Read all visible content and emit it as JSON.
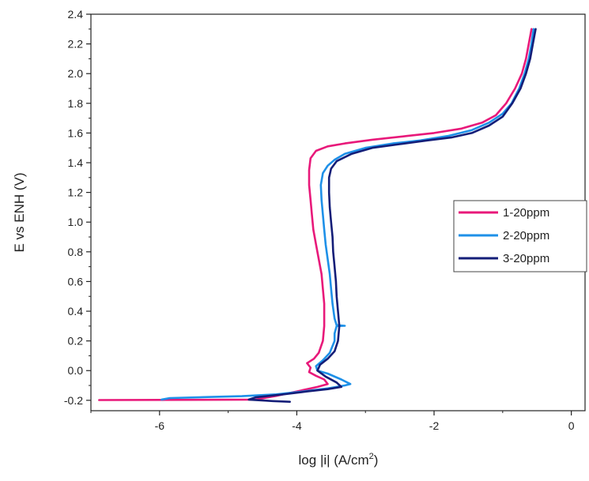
{
  "chart_data": {
    "type": "line",
    "title": "",
    "xlabel_main": "log |i| (A/cm",
    "xlabel_sup": "2",
    "xlabel_end": ")",
    "ylabel": "E vs ENH (V)",
    "xlim": [
      -7,
      0.2
    ],
    "ylim": [
      -0.27,
      2.4
    ],
    "x_ticks": [
      -6,
      -4,
      -2,
      0
    ],
    "x_tick_labels": [
      "-6",
      "-4",
      "-2",
      "0"
    ],
    "y_ticks": [
      -0.2,
      0.0,
      0.2,
      0.4,
      0.6,
      0.8,
      1.0,
      1.2,
      1.4,
      1.6,
      1.8,
      2.0,
      2.2,
      2.4
    ],
    "y_tick_labels": [
      "-0.2",
      "0.0",
      "0.2",
      "0.4",
      "0.6",
      "0.8",
      "1.0",
      "1.2",
      "1.4",
      "1.6",
      "1.8",
      "2.0",
      "2.2",
      "2.4"
    ],
    "legend_position": "right",
    "grid": false,
    "series": [
      {
        "name": "1-20ppm",
        "color": "#e8197a",
        "points": [
          [
            -6.88,
            -0.198
          ],
          [
            -6.0,
            -0.197
          ],
          [
            -5.0,
            -0.196
          ],
          [
            -4.6,
            -0.195
          ],
          [
            -4.3,
            -0.17
          ],
          [
            -4.0,
            -0.14
          ],
          [
            -3.7,
            -0.11
          ],
          [
            -3.55,
            -0.09
          ],
          [
            -3.6,
            -0.06
          ],
          [
            -3.72,
            -0.035
          ],
          [
            -3.82,
            -0.01
          ],
          [
            -3.8,
            0.02
          ],
          [
            -3.85,
            0.05
          ],
          [
            -3.75,
            0.08
          ],
          [
            -3.68,
            0.12
          ],
          [
            -3.62,
            0.2
          ],
          [
            -3.6,
            0.3
          ],
          [
            -3.6,
            0.45
          ],
          [
            -3.62,
            0.55
          ],
          [
            -3.64,
            0.65
          ],
          [
            -3.68,
            0.75
          ],
          [
            -3.72,
            0.85
          ],
          [
            -3.76,
            0.95
          ],
          [
            -3.78,
            1.05
          ],
          [
            -3.8,
            1.15
          ],
          [
            -3.82,
            1.25
          ],
          [
            -3.82,
            1.35
          ],
          [
            -3.8,
            1.43
          ],
          [
            -3.72,
            1.48
          ],
          [
            -3.55,
            1.51
          ],
          [
            -3.3,
            1.53
          ],
          [
            -2.9,
            1.555
          ],
          [
            -2.4,
            1.58
          ],
          [
            -2.0,
            1.6
          ],
          [
            -1.6,
            1.63
          ],
          [
            -1.3,
            1.67
          ],
          [
            -1.1,
            1.72
          ],
          [
            -0.95,
            1.8
          ],
          [
            -0.82,
            1.9
          ],
          [
            -0.72,
            2.0
          ],
          [
            -0.66,
            2.1
          ],
          [
            -0.62,
            2.2
          ],
          [
            -0.58,
            2.3
          ]
        ]
      },
      {
        "name": "2-20ppm",
        "color": "#1e90e8",
        "points": [
          [
            -5.97,
            -0.195
          ],
          [
            -5.85,
            -0.185
          ],
          [
            -5.3,
            -0.178
          ],
          [
            -4.8,
            -0.172
          ],
          [
            -4.3,
            -0.16
          ],
          [
            -3.9,
            -0.14
          ],
          [
            -3.55,
            -0.12
          ],
          [
            -3.3,
            -0.1
          ],
          [
            -3.22,
            -0.09
          ],
          [
            -3.35,
            -0.06
          ],
          [
            -3.55,
            -0.02
          ],
          [
            -3.7,
            0.0
          ],
          [
            -3.72,
            0.03
          ],
          [
            -3.62,
            0.07
          ],
          [
            -3.52,
            0.12
          ],
          [
            -3.45,
            0.2
          ],
          [
            -3.45,
            0.25
          ],
          [
            -3.42,
            0.3
          ],
          [
            -3.3,
            0.302
          ],
          [
            -3.42,
            0.306
          ],
          [
            -3.45,
            0.35
          ],
          [
            -3.48,
            0.45
          ],
          [
            -3.5,
            0.55
          ],
          [
            -3.52,
            0.65
          ],
          [
            -3.55,
            0.75
          ],
          [
            -3.58,
            0.85
          ],
          [
            -3.6,
            0.95
          ],
          [
            -3.62,
            1.05
          ],
          [
            -3.64,
            1.15
          ],
          [
            -3.65,
            1.25
          ],
          [
            -3.62,
            1.33
          ],
          [
            -3.55,
            1.38
          ],
          [
            -3.45,
            1.42
          ],
          [
            -3.3,
            1.46
          ],
          [
            -3.0,
            1.5
          ],
          [
            -2.6,
            1.53
          ],
          [
            -2.2,
            1.55
          ],
          [
            -1.8,
            1.58
          ],
          [
            -1.45,
            1.62
          ],
          [
            -1.2,
            1.67
          ],
          [
            -1.0,
            1.73
          ],
          [
            -0.87,
            1.8
          ],
          [
            -0.76,
            1.9
          ],
          [
            -0.68,
            2.0
          ],
          [
            -0.62,
            2.1
          ],
          [
            -0.58,
            2.2
          ],
          [
            -0.55,
            2.3
          ]
        ]
      },
      {
        "name": "3-20ppm",
        "color": "#141e78",
        "points": [
          [
            -4.1,
            -0.21
          ],
          [
            -4.35,
            -0.205
          ],
          [
            -4.7,
            -0.195
          ],
          [
            -4.6,
            -0.18
          ],
          [
            -4.2,
            -0.16
          ],
          [
            -3.85,
            -0.14
          ],
          [
            -3.55,
            -0.125
          ],
          [
            -3.35,
            -0.11
          ],
          [
            -3.42,
            -0.08
          ],
          [
            -3.58,
            -0.04
          ],
          [
            -3.7,
            0.0
          ],
          [
            -3.66,
            0.04
          ],
          [
            -3.55,
            0.08
          ],
          [
            -3.45,
            0.13
          ],
          [
            -3.4,
            0.2
          ],
          [
            -3.38,
            0.3
          ],
          [
            -3.4,
            0.4
          ],
          [
            -3.42,
            0.5
          ],
          [
            -3.43,
            0.6
          ],
          [
            -3.45,
            0.7
          ],
          [
            -3.47,
            0.8
          ],
          [
            -3.48,
            0.9
          ],
          [
            -3.5,
            1.0
          ],
          [
            -3.52,
            1.1
          ],
          [
            -3.53,
            1.2
          ],
          [
            -3.53,
            1.3
          ],
          [
            -3.5,
            1.36
          ],
          [
            -3.42,
            1.41
          ],
          [
            -3.2,
            1.46
          ],
          [
            -2.9,
            1.5
          ],
          [
            -2.5,
            1.525
          ],
          [
            -2.1,
            1.55
          ],
          [
            -1.75,
            1.57
          ],
          [
            -1.45,
            1.6
          ],
          [
            -1.2,
            1.65
          ],
          [
            -1.0,
            1.71
          ],
          [
            -0.86,
            1.8
          ],
          [
            -0.74,
            1.9
          ],
          [
            -0.66,
            2.0
          ],
          [
            -0.6,
            2.1
          ],
          [
            -0.56,
            2.2
          ],
          [
            -0.52,
            2.3
          ]
        ]
      }
    ]
  }
}
